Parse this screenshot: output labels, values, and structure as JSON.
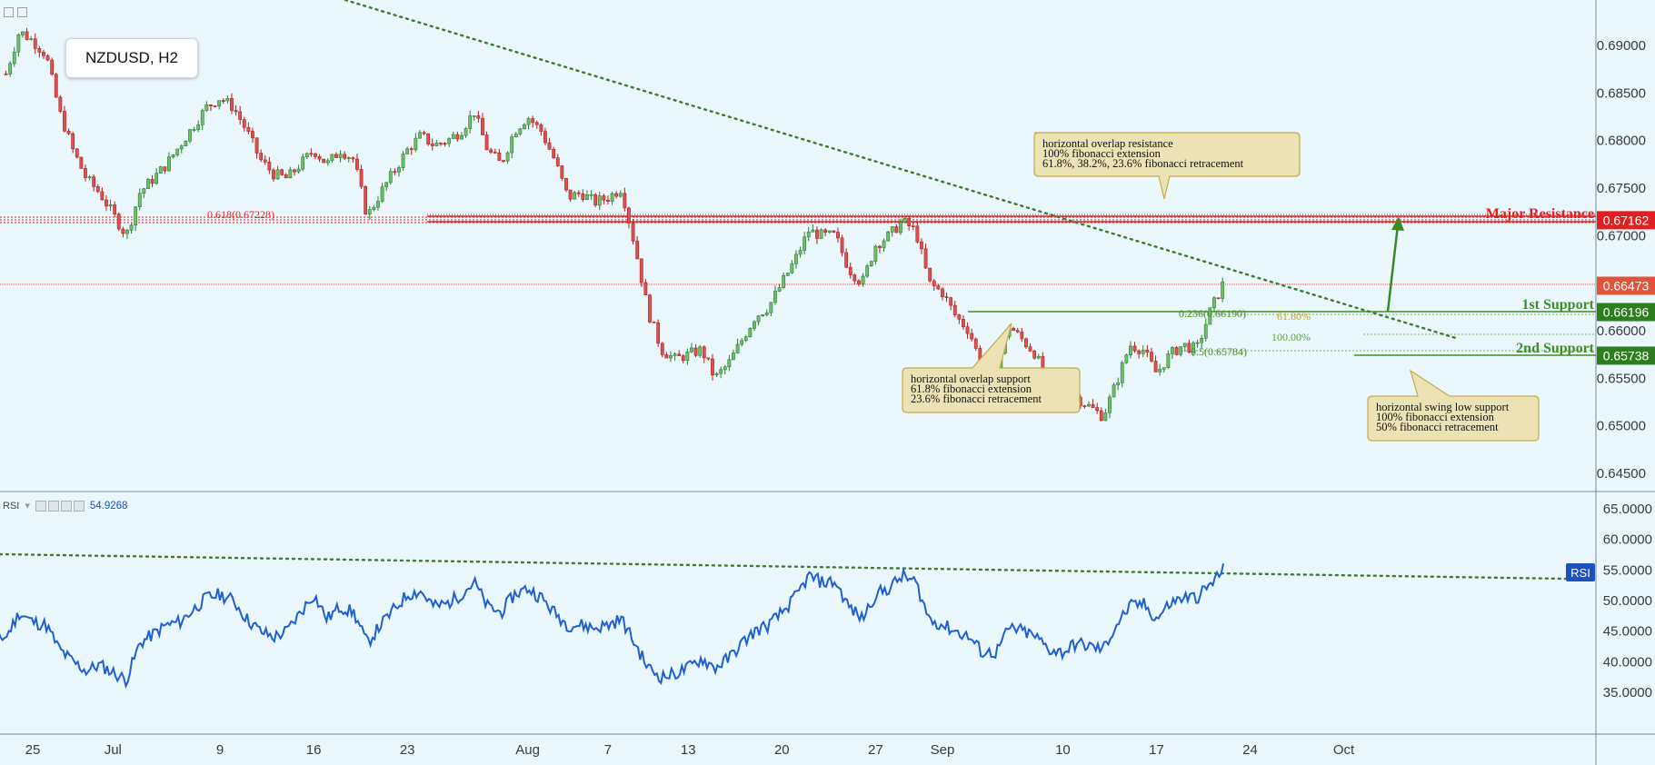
{
  "symbol": "NZDUSD, H2",
  "rsi_panel": {
    "label": "RSI",
    "value": "54.9268"
  },
  "price_axis": {
    "labels": [
      "0.69000",
      "0.68500",
      "0.68000",
      "0.67500",
      "0.67000",
      "0.66500",
      "0.66000",
      "0.65500",
      "0.65000",
      "0.64500"
    ],
    "badges": [
      {
        "text": "0.67162",
        "color": "#e31e1e"
      },
      {
        "text": "0.66473",
        "color": "#e0553a"
      },
      {
        "text": "0.66196",
        "color": "#2e7d1f"
      },
      {
        "text": "0.65738",
        "color": "#2e7d1f"
      }
    ]
  },
  "rsi_axis": {
    "labels": [
      "65.0000",
      "60.0000",
      "55.0000",
      "50.0000",
      "45.0000",
      "40.0000",
      "35.0000"
    ],
    "badge": {
      "text": "RSI",
      "color": "#1f4fc1"
    }
  },
  "time_axis": {
    "labels": [
      "25",
      "Jul",
      "9",
      "16",
      "23",
      "Aug",
      "7",
      "13",
      "20",
      "27",
      "Sep",
      "10",
      "17",
      "24",
      "Oct"
    ]
  },
  "levels": {
    "major_resistance": "Major Resistance",
    "support_1": "1st Support",
    "support_2": "2nd Support"
  },
  "fib_labels": {
    "left": "0.618(0.67228)",
    "s1": "0.236(0.66190)",
    "s1_ext": "61.80%",
    "s2_ext": "100.00%",
    "s2": "0.5(0.65784)"
  },
  "annotations": {
    "resistance": [
      "horizontal overlap resistance",
      "100% fibonacci extension",
      "61.8%, 38.2%, 23.6% fibonacci retracement"
    ],
    "support1": [
      "horizontal overlap support",
      "61.8% fibonacci extension",
      " 23.6% fibonacci retracement"
    ],
    "support2": [
      "horizontal swing low support",
      "100% fibonacci extension",
      "50% fibonacci retracement"
    ]
  },
  "colors": {
    "background": "#eaf7fd",
    "bull_candle": "#2e7d32",
    "bear_candle": "#b71c1c",
    "resistance": "#e31e1e",
    "support": "#3f8f1f",
    "rsi_line": "#1f5fd1",
    "trendline": "#3a7d2a"
  },
  "chart_data": {
    "type": "candlestick",
    "title": "NZDUSD, H2",
    "ylim": [
      0.644,
      0.6945
    ],
    "key_levels": [
      0.67162,
      0.66473,
      0.66196,
      0.65738
    ],
    "close_path": [
      {
        "t": "Jun 23",
        "v": 0.687
      },
      {
        "t": "Jun 24",
        "v": 0.6915
      },
      {
        "t": "Jun 25",
        "v": 0.6905
      },
      {
        "t": "Jun 26",
        "v": 0.689
      },
      {
        "t": "Jun 27",
        "v": 0.683
      },
      {
        "t": "Jun 28",
        "v": 0.679
      },
      {
        "t": "Jun 29",
        "v": 0.676
      },
      {
        "t": "Jun 30",
        "v": 0.6745
      },
      {
        "t": "Jul 2",
        "v": 0.67
      },
      {
        "t": "Jul 3",
        "v": 0.6745
      },
      {
        "t": "Jul 5",
        "v": 0.6775
      },
      {
        "t": "Jul 6",
        "v": 0.6795
      },
      {
        "t": "Jul 8",
        "v": 0.6835
      },
      {
        "t": "Jul 9",
        "v": 0.6845
      },
      {
        "t": "Jul 10",
        "v": 0.6835
      },
      {
        "t": "Jul 11",
        "v": 0.681
      },
      {
        "t": "Jul 12",
        "v": 0.678
      },
      {
        "t": "Jul 13",
        "v": 0.6765
      },
      {
        "t": "Jul 14",
        "v": 0.676
      },
      {
        "t": "Jul 16",
        "v": 0.679
      },
      {
        "t": "Jul 17",
        "v": 0.6775
      },
      {
        "t": "Jul 18",
        "v": 0.679
      },
      {
        "t": "Jul 19",
        "v": 0.678
      },
      {
        "t": "Jul 20",
        "v": 0.672
      },
      {
        "t": "Jul 21",
        "v": 0.6745
      },
      {
        "t": "Jul 23",
        "v": 0.679
      },
      {
        "t": "Jul 24",
        "v": 0.6805
      },
      {
        "t": "Jul 25",
        "v": 0.6795
      },
      {
        "t": "Jul 26",
        "v": 0.68
      },
      {
        "t": "Jul 27",
        "v": 0.681
      },
      {
        "t": "Jul 28",
        "v": 0.683
      },
      {
        "t": "Jul 29",
        "v": 0.679
      },
      {
        "t": "Jul 30",
        "v": 0.6775
      },
      {
        "t": "Jul 31",
        "v": 0.681
      },
      {
        "t": "Aug 1",
        "v": 0.6825
      },
      {
        "t": "Aug 2",
        "v": 0.681
      },
      {
        "t": "Aug 3",
        "v": 0.678
      },
      {
        "t": "Aug 4",
        "v": 0.674
      },
      {
        "t": "Aug 5",
        "v": 0.6745
      },
      {
        "t": "Aug 6",
        "v": 0.6735
      },
      {
        "t": "Aug 7",
        "v": 0.674
      },
      {
        "t": "Aug 8",
        "v": 0.675
      },
      {
        "t": "Aug 9",
        "v": 0.669
      },
      {
        "t": "Aug 10",
        "v": 0.662
      },
      {
        "t": "Aug 11",
        "v": 0.658
      },
      {
        "t": "Aug 12",
        "v": 0.657
      },
      {
        "t": "Aug 13",
        "v": 0.6575
      },
      {
        "t": "Aug 14",
        "v": 0.658
      },
      {
        "t": "Aug 15",
        "v": 0.655
      },
      {
        "t": "Aug 16",
        "v": 0.6565
      },
      {
        "t": "Aug 17",
        "v": 0.659
      },
      {
        "t": "Aug 18",
        "v": 0.6615
      },
      {
        "t": "Aug 19",
        "v": 0.6625
      },
      {
        "t": "Aug 20",
        "v": 0.665
      },
      {
        "t": "Aug 21",
        "v": 0.6675
      },
      {
        "t": "Aug 22",
        "v": 0.6705
      },
      {
        "t": "Aug 23",
        "v": 0.67
      },
      {
        "t": "Aug 24",
        "v": 0.67
      },
      {
        "t": "Aug 25",
        "v": 0.6665
      },
      {
        "t": "Aug 26",
        "v": 0.665
      },
      {
        "t": "Aug 27",
        "v": 0.669
      },
      {
        "t": "Aug 28",
        "v": 0.67
      },
      {
        "t": "Aug 29",
        "v": 0.6715
      },
      {
        "t": "Aug 30",
        "v": 0.6705
      },
      {
        "t": "Aug 31",
        "v": 0.665
      },
      {
        "t": "Sep 1",
        "v": 0.664
      },
      {
        "t": "Sep 2",
        "v": 0.6615
      },
      {
        "t": "Sep 3",
        "v": 0.66
      },
      {
        "t": "Sep 4",
        "v": 0.656
      },
      {
        "t": "Sep 5",
        "v": 0.656
      },
      {
        "t": "Sep 6",
        "v": 0.6605
      },
      {
        "t": "Sep 7",
        "v": 0.659
      },
      {
        "t": "Sep 8",
        "v": 0.6575
      },
      {
        "t": "Sep 9",
        "v": 0.6535
      },
      {
        "t": "Sep 10",
        "v": 0.652
      },
      {
        "t": "Sep 11",
        "v": 0.653
      },
      {
        "t": "Sep 12",
        "v": 0.652
      },
      {
        "t": "Sep 13",
        "v": 0.651
      },
      {
        "t": "Sep 14",
        "v": 0.6545
      },
      {
        "t": "Sep 15",
        "v": 0.6585
      },
      {
        "t": "Sep 16",
        "v": 0.658
      },
      {
        "t": "Sep 17",
        "v": 0.6555
      },
      {
        "t": "Sep 18",
        "v": 0.6575
      },
      {
        "t": "Sep 19",
        "v": 0.6585
      },
      {
        "t": "Sep 20",
        "v": 0.658
      },
      {
        "t": "Sep 21",
        "v": 0.662
      },
      {
        "t": "Sep 22",
        "v": 0.665
      }
    ],
    "rsi": {
      "ylim": [
        32,
        66
      ],
      "last": 54.9268,
      "path": [
        {
          "t": "Jun 23",
          "v": 44
        },
        {
          "t": "Jun 24",
          "v": 48
        },
        {
          "t": "Jun 25",
          "v": 46.5
        },
        {
          "t": "Jun 26",
          "v": 46
        },
        {
          "t": "Jun 27",
          "v": 42
        },
        {
          "t": "Jun 28",
          "v": 40
        },
        {
          "t": "Jun 29",
          "v": 38.5
        },
        {
          "t": "Jun 30",
          "v": 39.5
        },
        {
          "t": "Jul 2",
          "v": 37
        },
        {
          "t": "Jul 3",
          "v": 43
        },
        {
          "t": "Jul 5",
          "v": 46
        },
        {
          "t": "Jul 6",
          "v": 46.5
        },
        {
          "t": "Jul 8",
          "v": 50.5
        },
        {
          "t": "Jul 9",
          "v": 51
        },
        {
          "t": "Jul 10",
          "v": 50
        },
        {
          "t": "Jul 11",
          "v": 47
        },
        {
          "t": "Jul 12",
          "v": 45
        },
        {
          "t": "Jul 13",
          "v": 44
        },
        {
          "t": "Jul 14",
          "v": 45
        },
        {
          "t": "Jul 16",
          "v": 51
        },
        {
          "t": "Jul 17",
          "v": 47
        },
        {
          "t": "Jul 18",
          "v": 49
        },
        {
          "t": "Jul 19",
          "v": 48
        },
        {
          "t": "Jul 20",
          "v": 43
        },
        {
          "t": "Jul 21",
          "v": 46
        },
        {
          "t": "Jul 23",
          "v": 51
        },
        {
          "t": "Jul 24",
          "v": 51.5
        },
        {
          "t": "Jul 25",
          "v": 49
        },
        {
          "t": "Jul 26",
          "v": 49.5
        },
        {
          "t": "Jul 27",
          "v": 51
        },
        {
          "t": "Jul 28",
          "v": 53
        },
        {
          "t": "Jul 29",
          "v": 49
        },
        {
          "t": "Jul 30",
          "v": 48
        },
        {
          "t": "Jul 31",
          "v": 51
        },
        {
          "t": "Aug 1",
          "v": 52
        },
        {
          "t": "Aug 2",
          "v": 50.5
        },
        {
          "t": "Aug 3",
          "v": 48
        },
        {
          "t": "Aug 4",
          "v": 46
        },
        {
          "t": "Aug 5",
          "v": 46
        },
        {
          "t": "Aug 6",
          "v": 45.5
        },
        {
          "t": "Aug 7",
          "v": 46
        },
        {
          "t": "Aug 8",
          "v": 47
        },
        {
          "t": "Aug 9",
          "v": 43
        },
        {
          "t": "Aug 10",
          "v": 39
        },
        {
          "t": "Aug 11",
          "v": 37.5
        },
        {
          "t": "Aug 12",
          "v": 38
        },
        {
          "t": "Aug 13",
          "v": 39
        },
        {
          "t": "Aug 14",
          "v": 40.5
        },
        {
          "t": "Aug 15",
          "v": 39
        },
        {
          "t": "Aug 16",
          "v": 40.5
        },
        {
          "t": "Aug 17",
          "v": 43
        },
        {
          "t": "Aug 18",
          "v": 45
        },
        {
          "t": "Aug 19",
          "v": 46
        },
        {
          "t": "Aug 20",
          "v": 48
        },
        {
          "t": "Aug 21",
          "v": 50.5
        },
        {
          "t": "Aug 22",
          "v": 54
        },
        {
          "t": "Aug 23",
          "v": 53
        },
        {
          "t": "Aug 24",
          "v": 53
        },
        {
          "t": "Aug 25",
          "v": 49
        },
        {
          "t": "Aug 26",
          "v": 47
        },
        {
          "t": "Aug 27",
          "v": 51
        },
        {
          "t": "Aug 28",
          "v": 52
        },
        {
          "t": "Aug 29",
          "v": 54
        },
        {
          "t": "Aug 30",
          "v": 53
        },
        {
          "t": "Aug 31",
          "v": 47
        },
        {
          "t": "Sep 1",
          "v": 46
        },
        {
          "t": "Sep 2",
          "v": 45
        },
        {
          "t": "Sep 3",
          "v": 44
        },
        {
          "t": "Sep 4",
          "v": 41.5
        },
        {
          "t": "Sep 5",
          "v": 41.5
        },
        {
          "t": "Sep 6",
          "v": 45.5
        },
        {
          "t": "Sep 7",
          "v": 45
        },
        {
          "t": "Sep 8",
          "v": 44
        },
        {
          "t": "Sep 9",
          "v": 42
        },
        {
          "t": "Sep 10",
          "v": 41.5
        },
        {
          "t": "Sep 11",
          "v": 43
        },
        {
          "t": "Sep 12",
          "v": 42.5
        },
        {
          "t": "Sep 13",
          "v": 42
        },
        {
          "t": "Sep 14",
          "v": 46
        },
        {
          "t": "Sep 15",
          "v": 49
        },
        {
          "t": "Sep 16",
          "v": 49.5
        },
        {
          "t": "Sep 17",
          "v": 47
        },
        {
          "t": "Sep 18",
          "v": 49.5
        },
        {
          "t": "Sep 19",
          "v": 50.5
        },
        {
          "t": "Sep 20",
          "v": 50.5
        },
        {
          "t": "Sep 21",
          "v": 52.5
        },
        {
          "t": "Sep 22",
          "v": 55
        }
      ]
    }
  }
}
